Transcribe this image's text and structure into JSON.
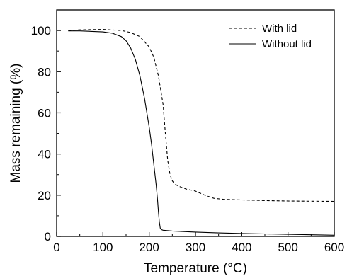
{
  "chart_data": {
    "type": "line",
    "title": "",
    "xlabel": "Temperature (°C)",
    "ylabel": "Mass remaining (%)",
    "xlim": [
      0,
      600
    ],
    "ylim": [
      0,
      110
    ],
    "xticks": [
      0,
      100,
      200,
      300,
      400,
      500,
      600
    ],
    "yticks": [
      0,
      20,
      40,
      60,
      80,
      100
    ],
    "grid": false,
    "legend_position": "top-right",
    "series": [
      {
        "name": "With lid",
        "line_style": "dashed",
        "color": "#000000",
        "x": [
          25,
          50,
          100,
          140,
          160,
          180,
          200,
          210,
          220,
          230,
          235,
          240,
          245,
          250,
          255,
          260,
          270,
          280,
          300,
          320,
          340,
          360,
          400,
          450,
          500,
          550,
          600
        ],
        "y": [
          100,
          100.3,
          100.5,
          100,
          99,
          97,
          92,
          87,
          78,
          64,
          50,
          37,
          30,
          27,
          25.5,
          24.8,
          23.8,
          23,
          22,
          20,
          18.5,
          18,
          17.7,
          17.4,
          17.2,
          17.1,
          17
        ]
      },
      {
        "name": "Without lid",
        "line_style": "solid",
        "color": "#000000",
        "x": [
          25,
          50,
          100,
          120,
          140,
          150,
          160,
          170,
          180,
          190,
          200,
          205,
          210,
          215,
          218,
          220,
          222,
          224,
          226,
          230,
          250,
          300,
          350,
          400,
          450,
          500,
          550,
          600
        ],
        "y": [
          99.8,
          99.8,
          99.3,
          98.7,
          97,
          95,
          91.5,
          86,
          78,
          67,
          53,
          45,
          35,
          25,
          18,
          12,
          7,
          4,
          3.3,
          3,
          2.6,
          2.1,
          1.7,
          1.4,
          1.2,
          1,
          0.8,
          0.6
        ]
      }
    ]
  }
}
